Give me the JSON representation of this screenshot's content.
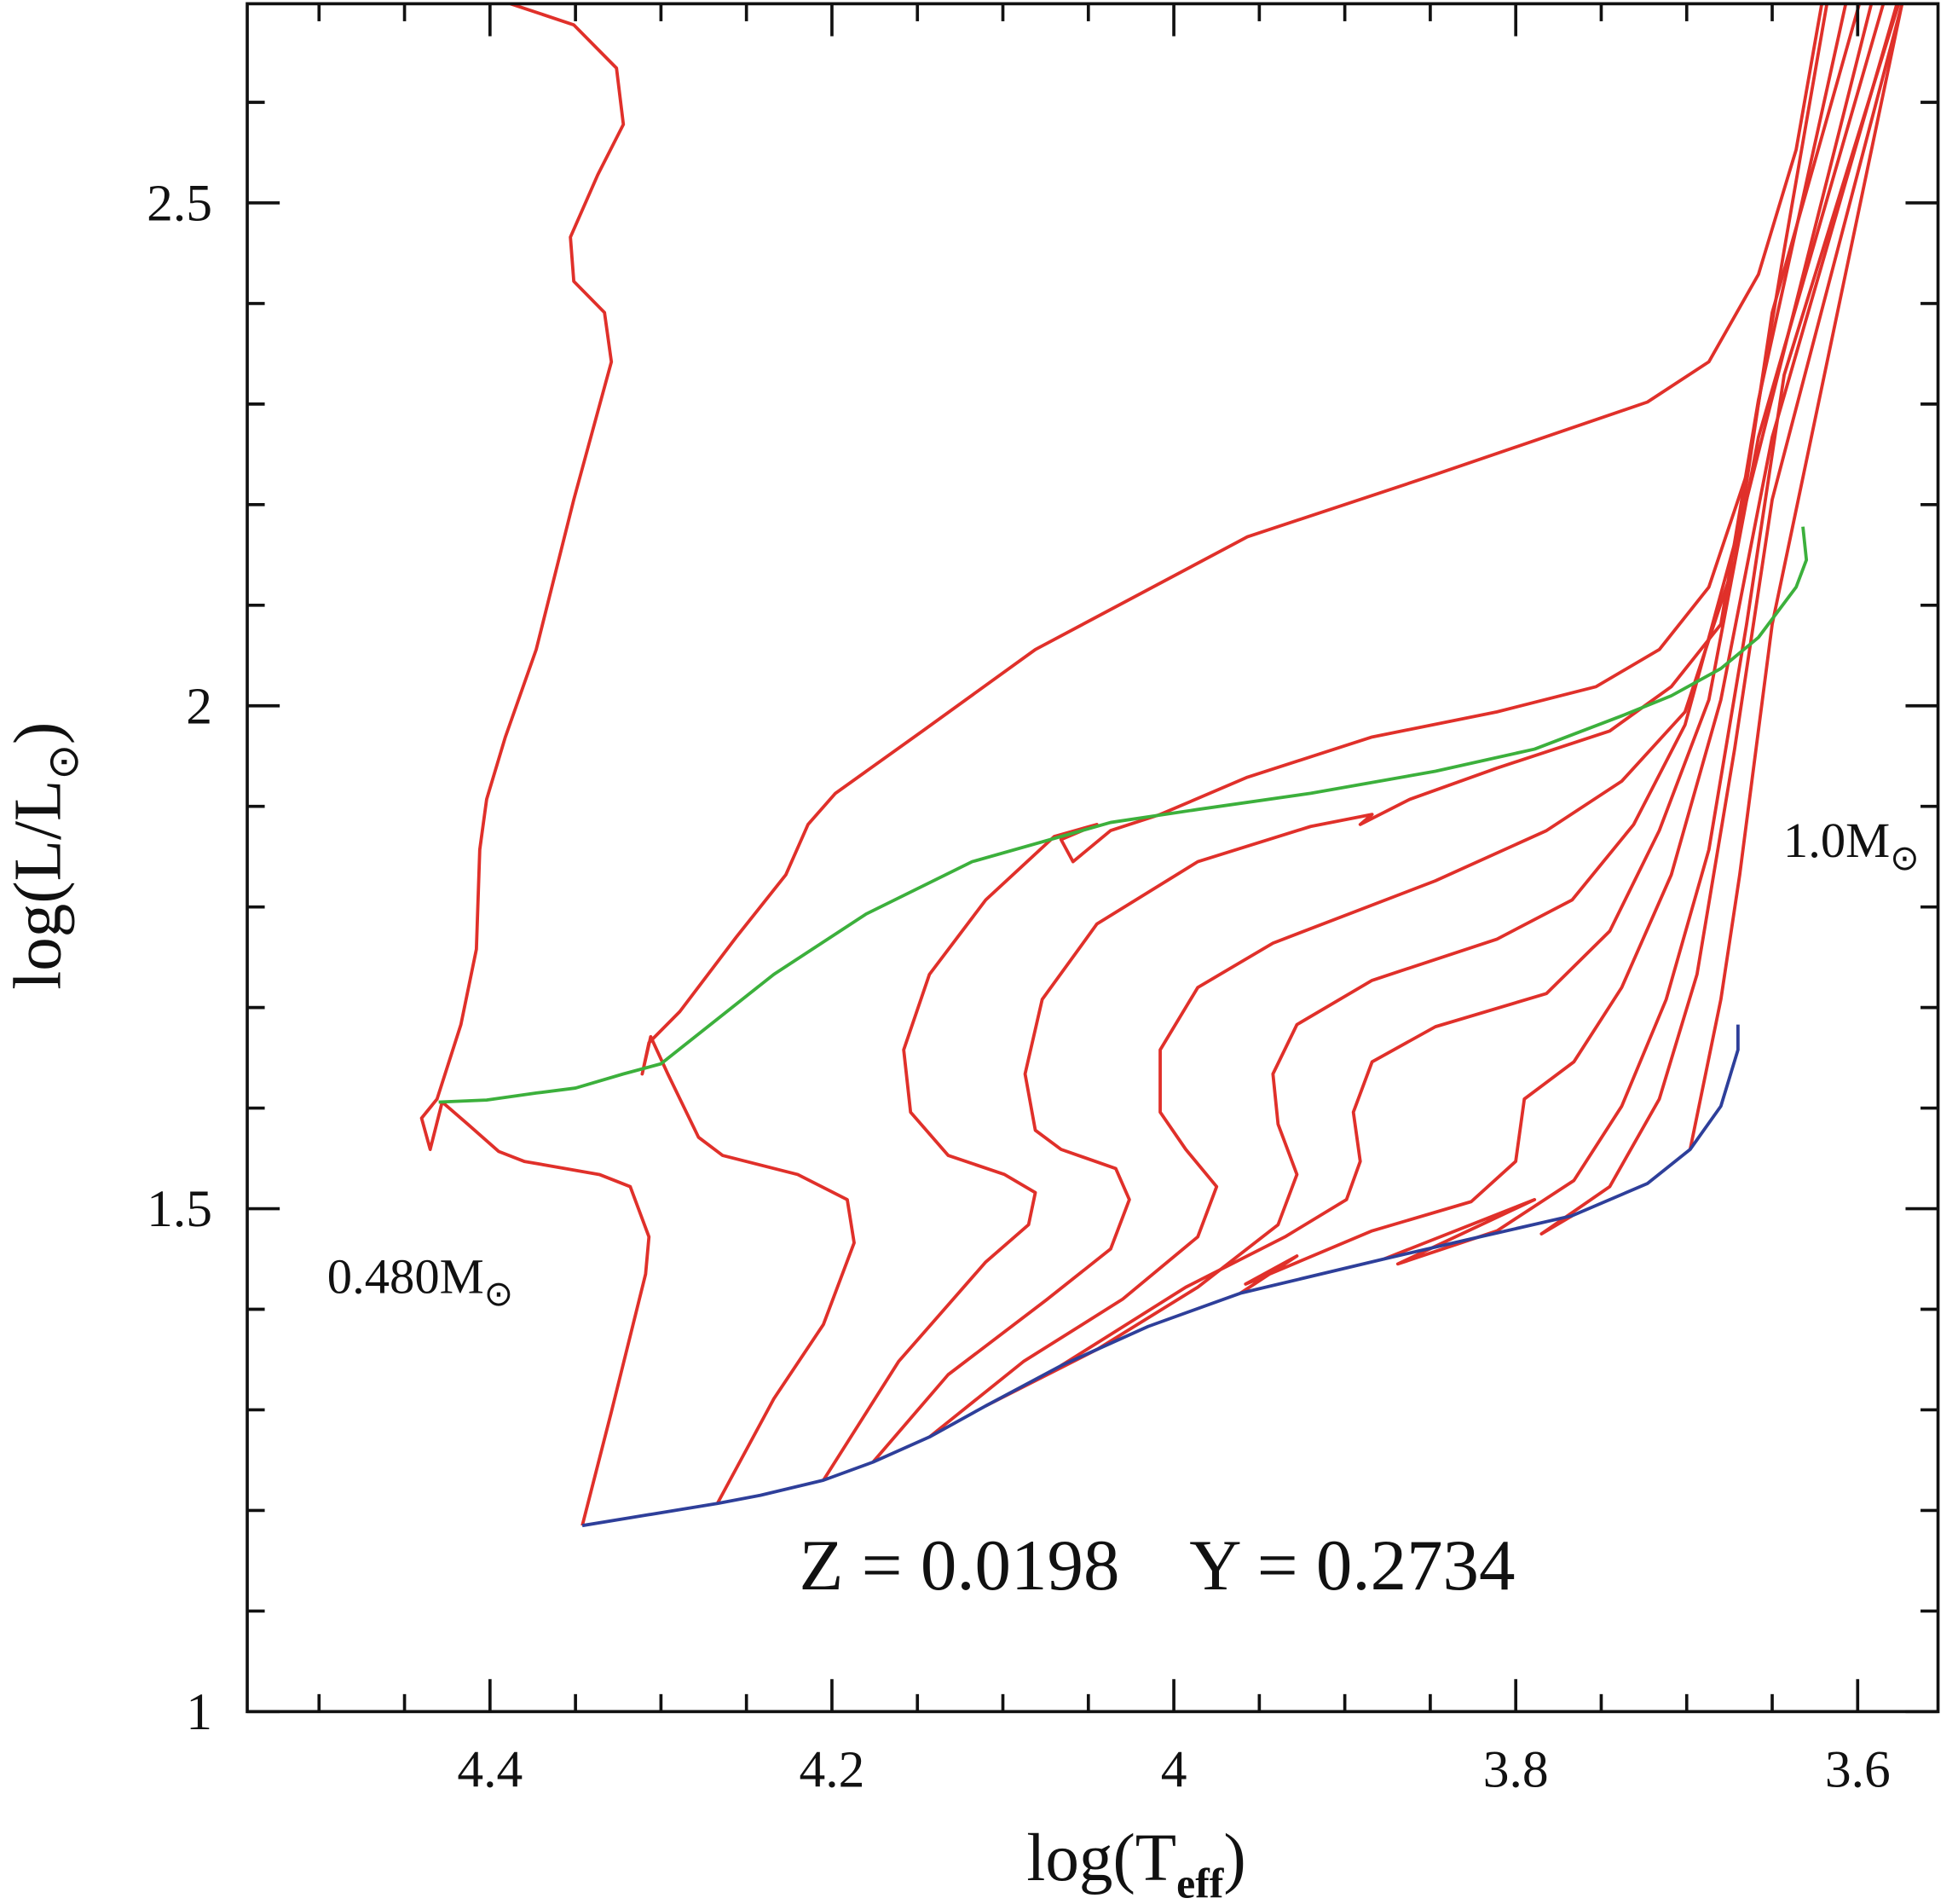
{
  "chart_data": {
    "type": "line",
    "xlabel": [
      "log(T",
      "eff",
      ")"
    ],
    "ylabel": [
      "log(L/L",
      "⊙",
      ")"
    ],
    "annotations": [
      [
        "0.480M",
        "⊙"
      ],
      [
        "1.0M",
        "⊙"
      ],
      [
        "Z = 0.0198    Y = 0.2734"
      ]
    ],
    "xlim": [
      4.542,
      3.553
    ],
    "ylim": [
      1,
      2.698
    ],
    "xticks": [
      4.4,
      4.2,
      4,
      3.8,
      3.6
    ],
    "yticks": [
      1,
      1.5,
      2,
      2.5
    ],
    "xminorticks": [
      4.5,
      4.45,
      4.35,
      4.3,
      4.25,
      4.15,
      4.1,
      4.05,
      3.95,
      3.9,
      3.85,
      3.75,
      3.7,
      3.65
    ],
    "yminorticks": [
      1.1,
      1.2,
      1.3,
      1.4,
      1.6,
      1.7,
      1.8,
      1.9,
      2.1,
      2.2,
      2.3,
      2.4,
      2.6
    ],
    "series": [
      {
        "color": "#e0302a",
        "x": [
          4.346,
          4.329,
          4.309,
          4.307,
          4.318,
          4.336,
          4.38,
          4.395,
          4.413,
          4.428,
          4.435,
          4.44,
          4.431,
          4.417,
          4.408,
          4.406,
          4.402,
          4.391,
          4.373,
          4.351,
          4.329,
          4.333,
          4.351,
          4.353,
          4.337,
          4.322,
          4.326,
          4.351,
          4.388
        ],
        "values": [
          1.185,
          1.298,
          1.435,
          1.472,
          1.522,
          1.534,
          1.547,
          1.557,
          1.584,
          1.606,
          1.559,
          1.59,
          1.609,
          1.683,
          1.758,
          1.857,
          1.907,
          1.969,
          2.056,
          2.205,
          2.342,
          2.391,
          2.422,
          2.466,
          2.528,
          2.578,
          2.634,
          2.677,
          2.698
        ]
      },
      {
        "color": "#e0302a",
        "x": [
          4.267,
          4.234,
          4.205,
          4.187,
          4.191,
          4.22,
          4.264,
          4.278,
          4.296,
          4.306,
          4.311,
          4.307,
          4.289,
          4.256,
          4.227,
          4.214,
          4.198,
          4.147,
          4.081,
          3.957,
          3.847,
          3.723,
          3.687,
          3.658,
          3.636,
          3.621
        ],
        "values": [
          1.207,
          1.311,
          1.385,
          1.466,
          1.509,
          1.534,
          1.553,
          1.571,
          1.634,
          1.671,
          1.634,
          1.665,
          1.696,
          1.77,
          1.832,
          1.882,
          1.913,
          1.975,
          2.056,
          2.168,
          2.23,
          2.302,
          2.342,
          2.429,
          2.553,
          2.698
        ]
      },
      {
        "color": "#e0302a",
        "x": [
          4.205,
          4.161,
          4.11,
          4.085,
          4.081,
          4.099,
          4.132,
          4.154,
          4.158,
          4.143,
          4.11,
          4.07,
          4.045,
          4.066,
          4.059,
          4.037,
          4.008,
          3.957,
          3.884,
          3.811,
          3.753,
          3.716,
          3.687,
          3.665,
          3.643,
          3.618
        ],
        "values": [
          1.23,
          1.348,
          1.447,
          1.484,
          1.516,
          1.534,
          1.553,
          1.596,
          1.658,
          1.733,
          1.807,
          1.87,
          1.882,
          1.867,
          1.845,
          1.876,
          1.892,
          1.929,
          1.969,
          1.994,
          2.019,
          2.056,
          2.118,
          2.23,
          2.453,
          2.698
        ]
      },
      {
        "color": "#e0302a",
        "x": [
          4.176,
          4.132,
          4.074,
          4.037,
          4.026,
          4.034,
          4.066,
          4.081,
          4.087,
          4.077,
          4.045,
          3.986,
          3.92,
          3.884,
          3.891,
          3.862,
          3.811,
          3.745,
          3.709,
          3.68,
          3.658,
          3.607
        ],
        "values": [
          1.248,
          1.335,
          1.41,
          1.46,
          1.509,
          1.54,
          1.559,
          1.578,
          1.634,
          1.708,
          1.783,
          1.845,
          1.88,
          1.892,
          1.882,
          1.907,
          1.938,
          1.975,
          2.019,
          2.081,
          2.304,
          2.698
        ]
      },
      {
        "color": "#e0302a",
        "x": [
          4.143,
          4.088,
          4.03,
          3.986,
          3.975,
          3.993,
          4.008,
          4.008,
          3.986,
          3.942,
          3.847,
          3.782,
          3.738,
          3.701,
          3.672,
          3.65,
          3.599
        ],
        "values": [
          1.273,
          1.348,
          1.41,
          1.472,
          1.522,
          1.559,
          1.596,
          1.658,
          1.72,
          1.764,
          1.826,
          1.876,
          1.925,
          1.994,
          2.143,
          2.391,
          2.698
        ]
      },
      {
        "color": "#e0302a",
        "x": [
          4.11,
          4.045,
          3.986,
          3.939,
          3.928,
          3.939,
          3.942,
          3.928,
          3.884,
          3.811,
          3.767,
          3.731,
          3.701,
          3.665,
          3.592
        ],
        "values": [
          1.304,
          1.36,
          1.422,
          1.484,
          1.534,
          1.584,
          1.634,
          1.683,
          1.727,
          1.768,
          1.807,
          1.882,
          1.981,
          2.205,
          2.698
        ]
      },
      {
        "color": "#e0302a",
        "x": [
          4.066,
          3.993,
          3.935,
          3.899,
          3.891,
          3.895,
          3.884,
          3.847,
          3.782,
          3.745,
          3.716,
          3.687,
          3.658,
          3.585
        ],
        "values": [
          1.344,
          1.422,
          1.472,
          1.509,
          1.547,
          1.596,
          1.646,
          1.681,
          1.714,
          1.776,
          1.876,
          2.006,
          2.267,
          2.698
        ]
      },
      {
        "color": "#e0302a",
        "x": [
          3.961,
          3.928,
          3.958,
          3.884,
          3.826,
          3.8,
          3.795,
          3.766,
          3.738,
          3.709,
          3.68,
          3.65,
          3.577
        ],
        "values": [
          1.416,
          1.453,
          1.425,
          1.478,
          1.507,
          1.547,
          1.609,
          1.646,
          1.72,
          1.832,
          2.006,
          2.267,
          2.698
        ]
      },
      {
        "color": "#e0302a",
        "x": [
          3.877,
          3.789,
          3.869,
          3.811,
          3.766,
          3.738,
          3.712,
          3.687,
          3.665,
          3.643,
          3.576
        ],
        "values": [
          1.45,
          1.509,
          1.445,
          1.478,
          1.528,
          1.602,
          1.708,
          1.857,
          2.081,
          2.329,
          2.698
        ]
      },
      {
        "color": "#e0302a",
        "x": [
          3.767,
          3.785,
          3.745,
          3.716,
          3.694,
          3.672,
          3.65,
          3.574
        ],
        "values": [
          1.493,
          1.475,
          1.522,
          1.609,
          1.733,
          1.957,
          2.205,
          2.698
        ]
      },
      {
        "color": "#e0302a",
        "x": [
          3.698,
          3.68,
          3.669,
          3.65,
          3.574
        ],
        "values": [
          1.559,
          1.708,
          1.832,
          2.081,
          2.698
        ]
      },
      {
        "color": "#2e3f9a",
        "x": [
          4.346,
          4.267,
          4.242,
          4.205,
          4.176,
          4.143,
          4.11,
          4.066,
          4.015,
          3.961,
          3.877,
          3.826,
          3.767,
          3.723,
          3.698,
          3.68,
          3.67,
          3.67
        ],
        "values": [
          1.185,
          1.207,
          1.215,
          1.23,
          1.248,
          1.273,
          1.304,
          1.344,
          1.383,
          1.416,
          1.45,
          1.47,
          1.493,
          1.525,
          1.559,
          1.602,
          1.658,
          1.683
        ]
      },
      {
        "color": "#3cb03c",
        "x": [
          4.43,
          4.402,
          4.373,
          4.35,
          4.322,
          4.3,
          4.234,
          4.18,
          4.118,
          4.037,
          3.986,
          3.92,
          3.847,
          3.789,
          3.738,
          3.709,
          3.68,
          3.658,
          3.636,
          3.63,
          3.632
        ],
        "values": [
          1.606,
          1.608,
          1.615,
          1.62,
          1.634,
          1.644,
          1.733,
          1.793,
          1.845,
          1.884,
          1.897,
          1.913,
          1.935,
          1.957,
          1.99,
          2.01,
          2.037,
          2.068,
          2.118,
          2.145,
          2.178
        ]
      }
    ]
  }
}
